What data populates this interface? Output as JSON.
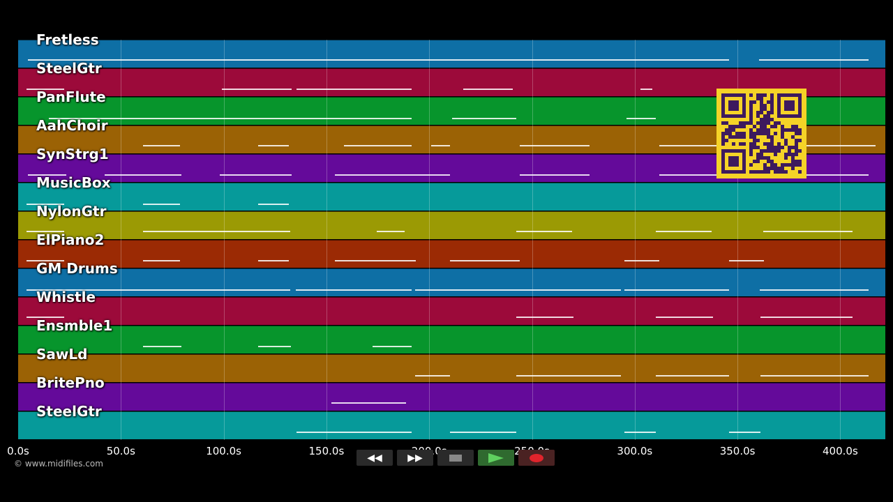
{
  "tracks": [
    {
      "name": "Fretless",
      "color": "#0e6fa5"
    },
    {
      "name": "SteelGtr",
      "color": "#9c0a3a"
    },
    {
      "name": "PanFlute",
      "color": "#07952c"
    },
    {
      "name": "AahChoir",
      "color": "#9b6205"
    },
    {
      "name": "SynStrg1",
      "color": "#640a9a"
    },
    {
      "name": "MusicBox",
      "color": "#069a9a"
    },
    {
      "name": "NylonGtr",
      "color": "#9b9a04"
    },
    {
      "name": "ElPiano2",
      "color": "#9b2a04"
    },
    {
      "name": "GM Drums",
      "color": "#0e6fa5"
    },
    {
      "name": "Whistle",
      "color": "#9c0a3a"
    },
    {
      "name": "Ensmble1",
      "color": "#07952c"
    },
    {
      "name": "SawLd",
      "color": "#9b6205"
    },
    {
      "name": "BritePno",
      "color": "#640a9a"
    },
    {
      "name": "SteelGtr",
      "color": "#069a9a"
    }
  ],
  "timeline": {
    "ticks": [
      "0.0s",
      "50.0s",
      "100.0s",
      "150.0s",
      "200.0s",
      "250.0s",
      "300.0s",
      "350.0s",
      "400.0s"
    ]
  },
  "copyright": "© www.midifiles.com",
  "transport": {
    "rewind_icon": "rewind-icon",
    "forward_icon": "fast-forward-icon",
    "stop_icon": "stop-icon",
    "play_icon": "play-icon",
    "record_icon": "record-icon"
  }
}
